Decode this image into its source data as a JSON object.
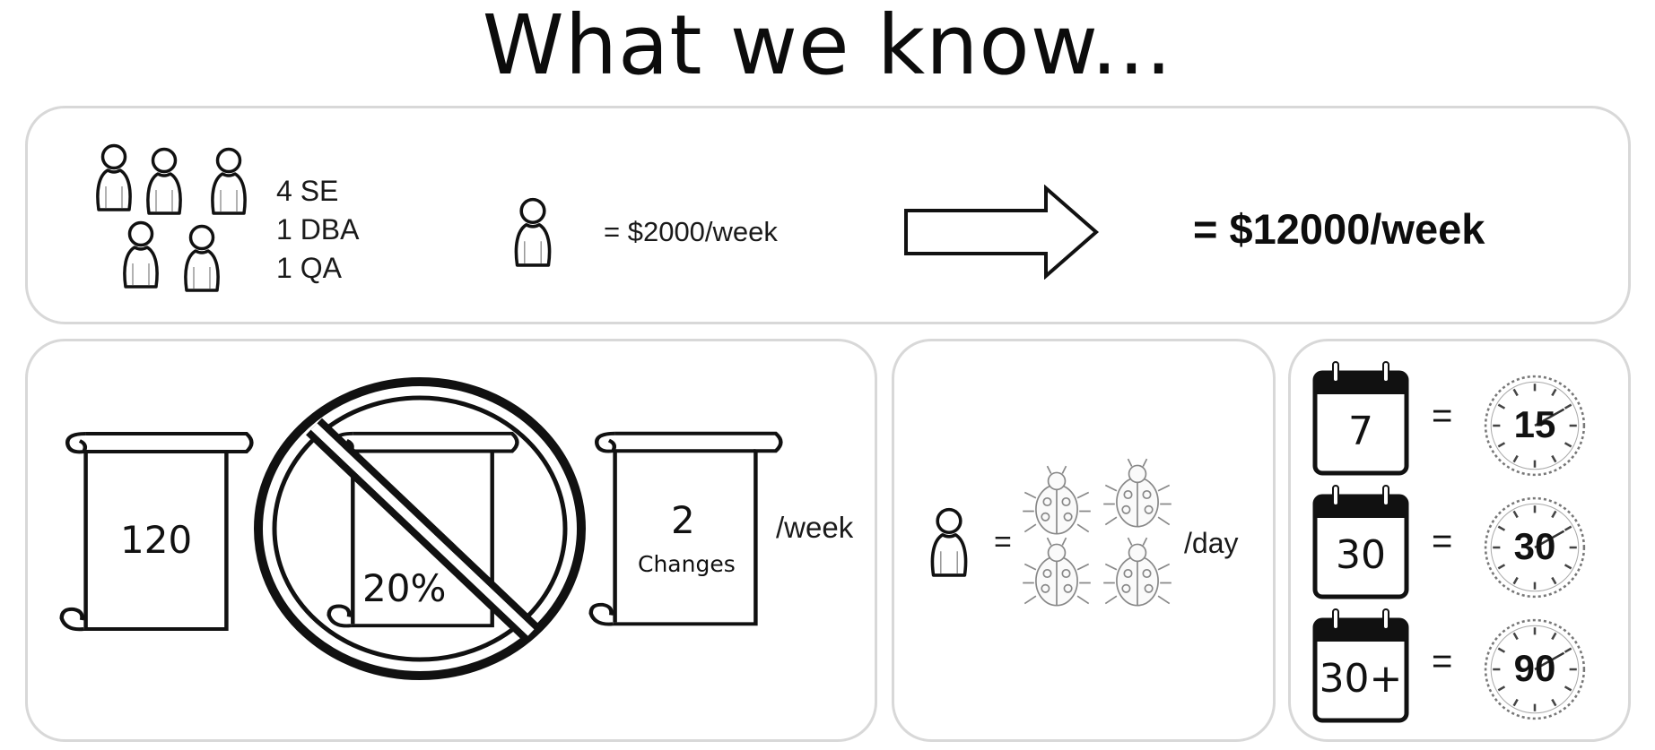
{
  "title": "What we know...",
  "team": {
    "lines": [
      "4 SE",
      "1 DBA",
      "1 QA"
    ],
    "rate": "= $2000/week",
    "total": "= $12000/week"
  },
  "changes": {
    "scroll_1": "120",
    "scroll_2": "20%",
    "scroll_3_count": "2",
    "scroll_3_label": "Changes",
    "per_week": "/week"
  },
  "bugs": {
    "equals": "=",
    "per_day": "/day"
  },
  "timeline": [
    {
      "calendar": "7",
      "equals": "=",
      "clock": "15"
    },
    {
      "calendar": "30",
      "equals": "=",
      "clock": "30"
    },
    {
      "calendar": "30+",
      "equals": "=",
      "clock": "90"
    }
  ]
}
